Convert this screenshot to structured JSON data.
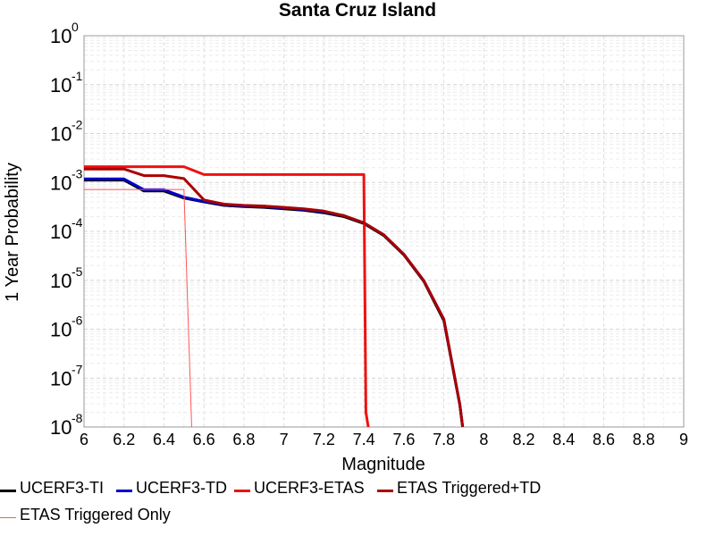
{
  "chart_data": {
    "type": "line",
    "title": "Santa Cruz Island",
    "xlabel": "Magnitude",
    "ylabel": "1 Year Probability",
    "xlim": [
      6,
      9
    ],
    "ylim": [
      1e-08,
      1
    ],
    "yscale": "log",
    "grid": true,
    "legend_position": "bottom",
    "x_ticks": [
      "6",
      "6.2",
      "6.4",
      "6.6",
      "6.8",
      "7",
      "7.2",
      "7.4",
      "7.6",
      "7.8",
      "8",
      "8.2",
      "8.4",
      "8.6",
      "8.8",
      "9"
    ],
    "y_ticks": [
      {
        "base": "10",
        "exp": "-8",
        "value": 1e-08
      },
      {
        "base": "10",
        "exp": "-7",
        "value": 1e-07
      },
      {
        "base": "10",
        "exp": "-6",
        "value": 1e-06
      },
      {
        "base": "10",
        "exp": "-5",
        "value": 1e-05
      },
      {
        "base": "10",
        "exp": "-4",
        "value": 0.0001
      },
      {
        "base": "10",
        "exp": "-3",
        "value": 0.001
      },
      {
        "base": "10",
        "exp": "-2",
        "value": 0.01
      },
      {
        "base": "10",
        "exp": "-1",
        "value": 0.1
      },
      {
        "base": "10",
        "exp": "0",
        "value": 1
      }
    ],
    "series": [
      {
        "name": "UCERF3-TI",
        "color": "#000000",
        "width": 3,
        "points": [
          [
            6.0,
            0.00112
          ],
          [
            6.2,
            0.00112
          ],
          [
            6.3,
            0.00067
          ],
          [
            6.4,
            0.00067
          ],
          [
            6.5,
            0.00048
          ],
          [
            6.6,
            0.0004
          ],
          [
            6.7,
            0.00034
          ],
          [
            6.8,
            0.00032
          ],
          [
            6.9,
            0.00031
          ],
          [
            7.0,
            0.00029
          ],
          [
            7.1,
            0.00027
          ],
          [
            7.2,
            0.00024
          ],
          [
            7.3,
            0.0002
          ],
          [
            7.4,
            0.000145
          ],
          [
            7.5,
            8.2e-05
          ],
          [
            7.6,
            3.3e-05
          ],
          [
            7.7,
            9.5e-06
          ],
          [
            7.8,
            1.5e-06
          ],
          [
            7.88,
            2.8e-08
          ],
          [
            7.9,
            5.5e-09
          ]
        ]
      },
      {
        "name": "UCERF3-TD",
        "color": "#0000cc",
        "width": 3,
        "points": [
          [
            6.0,
            0.00118
          ],
          [
            6.2,
            0.00118
          ],
          [
            6.3,
            0.00071
          ],
          [
            6.4,
            0.00071
          ],
          [
            6.5,
            0.0005
          ],
          [
            6.6,
            0.00041
          ],
          [
            6.7,
            0.00035
          ],
          [
            6.8,
            0.00033
          ],
          [
            6.9,
            0.00032
          ],
          [
            7.0,
            0.0003
          ],
          [
            7.1,
            0.00028
          ],
          [
            7.2,
            0.00025
          ],
          [
            7.3,
            0.00021
          ],
          [
            7.4,
            0.00015
          ],
          [
            7.5,
            8.5e-05
          ],
          [
            7.6,
            3.4e-05
          ],
          [
            7.7,
            9.8e-06
          ],
          [
            7.8,
            1.6e-06
          ],
          [
            7.88,
            2.9e-08
          ],
          [
            7.9,
            5.5e-09
          ]
        ]
      },
      {
        "name": "UCERF3-ETAS",
        "color": "#ee1111",
        "width": 3,
        "points": [
          [
            6.0,
            0.0021
          ],
          [
            6.5,
            0.0021
          ],
          [
            6.6,
            0.00145
          ],
          [
            7.4,
            0.00145
          ],
          [
            7.41,
            2e-08
          ],
          [
            7.43,
            5.5e-09
          ]
        ]
      },
      {
        "name": "ETAS Triggered+TD",
        "color": "#aa0000",
        "width": 3,
        "points": [
          [
            6.0,
            0.00188
          ],
          [
            6.2,
            0.00188
          ],
          [
            6.3,
            0.00138
          ],
          [
            6.4,
            0.00138
          ],
          [
            6.5,
            0.0012
          ],
          [
            6.6,
            0.00044
          ],
          [
            6.7,
            0.00036
          ],
          [
            6.8,
            0.00034
          ],
          [
            6.9,
            0.00033
          ],
          [
            7.0,
            0.00031
          ],
          [
            7.1,
            0.00029
          ],
          [
            7.2,
            0.00026
          ],
          [
            7.3,
            0.00021
          ],
          [
            7.4,
            0.00015
          ],
          [
            7.5,
            8.5e-05
          ],
          [
            7.6,
            3.4e-05
          ],
          [
            7.7,
            9.8e-06
          ],
          [
            7.8,
            1.6e-06
          ],
          [
            7.88,
            2.9e-08
          ],
          [
            7.9,
            5.5e-09
          ]
        ]
      },
      {
        "name": "ETAS Triggered Only",
        "color": "#ff5555",
        "width": 1,
        "points": [
          [
            6.0,
            0.00072
          ],
          [
            6.5,
            0.00072
          ],
          [
            6.54,
            5.5e-09
          ]
        ]
      }
    ]
  }
}
